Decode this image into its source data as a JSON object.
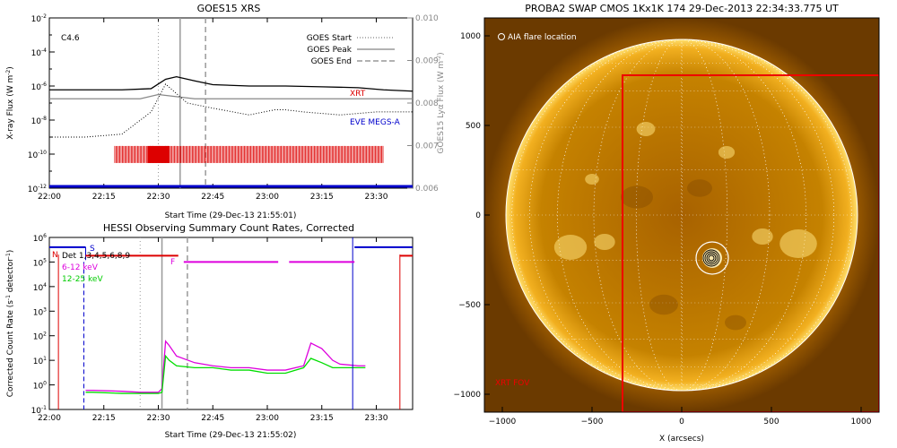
{
  "goes": {
    "title": "GOES15 XRS",
    "flare_class": "C4.6",
    "xlabel": "Start Time (29-Dec-13 21:55:01)",
    "ylabel_left": "X-ray Flux (W m",
    "ylabel_left_exp": "-2",
    "ylabel_left_close": ")",
    "ylabel_right": "GOES15 Lyα Flux (W m",
    "ylabel_right_exp": "-2",
    "ylabel_right_close": ")",
    "legend": [
      {
        "label": "GOES Start",
        "style": "dotted"
      },
      {
        "label": "GOES Peak",
        "style": "solid"
      },
      {
        "label": "GOES End",
        "style": "dashed"
      }
    ],
    "xrt_label": "XRT",
    "eve_label": "EVE MEGS-A",
    "colors": {
      "xrt": "#dd0000",
      "eve": "#0000cc",
      "vline": "#999999"
    }
  },
  "hessi": {
    "title": "HESSI Observing Summary Count Rates, Corrected",
    "xlabel": "Start Time (29-Dec-13 21:55:02)",
    "ylabel": "Corrected Count Rate (s",
    "ylabel_exp": "-1",
    "ylabel_mid": " detector",
    "ylabel_exp2": "-1",
    "ylabel_close": ")",
    "legend_det": "Det 1,3,4,5,6,8,9",
    "legend_612": "6-12 keV",
    "legend_1225": "12-25 keV",
    "flag_n": "N",
    "flag_s": "S",
    "flag_f": "F",
    "colors": {
      "det": "#000000",
      "c612": "#dd00dd",
      "c1225": "#00dd00",
      "flags": "#dd0000",
      "blue": "#0000cc"
    }
  },
  "swap": {
    "title": "PROBA2 SWAP CMOS 1Kx1K 174 29-Dec-2013 22:34:33.775 UT",
    "annotation": "AIA flare location",
    "box_label": "XRT FOV",
    "xlabel": "X (arcsecs)",
    "colors": {
      "box": "#ee0000",
      "sun": "#f0a800"
    }
  },
  "chart_data": [
    {
      "type": "line",
      "title": "GOES15 XRS",
      "xlabel": "Start Time (29-Dec-13 21:55:01)",
      "ylabel": "X-ray Flux (W m-2)",
      "ylabel_right": "GOES15 Lyα Flux (W m-2)",
      "x_ticks": [
        "22:00",
        "22:15",
        "22:30",
        "22:45",
        "23:00",
        "23:15",
        "23:30"
      ],
      "x_minutes": [
        0,
        15,
        30,
        45,
        60,
        75,
        90
      ],
      "xlim_minutes_after_2155": [
        0,
        100
      ],
      "ylim": [
        1e-12,
        0.01
      ],
      "y_scale": "log",
      "y_ticks": [
        "10^-12",
        "10^-10",
        "10^-8",
        "10^-6",
        "10^-4",
        "10^-2"
      ],
      "ylim_right": [
        0.006,
        0.01
      ],
      "y_ticks_right": [
        0.006,
        0.007,
        0.008,
        0.009,
        0.01
      ],
      "vlines": {
        "GOES Start": "22:25",
        "GOES Peak": "22:31",
        "GOES End": "22:38"
      },
      "series": [
        {
          "name": "",
          "x_minutes": [
            0,
            20,
            28,
            32,
            35,
            40,
            45,
            55,
            65,
            75,
            85,
            92,
            100
          ],
          "values": [
            6e-07,
            6e-07,
            7e-07,
            2.5e-06,
            3.5e-06,
            2e-06,
            1.2e-06,
            1e-06,
            1e-06,
            9e-07,
            8e-07,
            6e-07,
            5e-07
          ]
        },
        {
          "name": "",
          "x_minutes": [
            0,
            25,
            30,
            35,
            40,
            60,
            80,
            100
          ],
          "values": [
            0.0081,
            0.0081,
            0.0082,
            0.00815,
            0.0081,
            0.0081,
            0.0081,
            0.0081
          ]
        },
        {
          "name": "",
          "x_minutes": [
            0,
            10,
            20,
            28,
            32,
            38,
            45,
            55,
            62,
            65,
            70,
            80,
            90,
            100
          ],
          "values": [
            1e-09,
            1e-09,
            1.5e-09,
            3e-08,
            1.3e-06,
            1e-07,
            5e-08,
            2e-08,
            4e-08,
            4e-08,
            3e-08,
            2e-08,
            3e-08,
            3e-08
          ]
        }
      ],
      "xrt_coverage_minutes": [
        18,
        92
      ],
      "eve_coverage_minutes": [
        0,
        100
      ]
    },
    {
      "type": "line",
      "title": "HESSI Observing Summary Count Rates, Corrected",
      "xlabel": "Start Time (29-Dec-13 21:55:02)",
      "ylabel": "Corrected Count Rate (s-1 detector-1)",
      "x_ticks": [
        "22:00",
        "22:15",
        "22:30",
        "22:45",
        "23:00",
        "23:15",
        "23:30"
      ],
      "x_minutes": [
        0,
        15,
        30,
        45,
        60,
        75,
        90
      ],
      "xlim_minutes_after_2155": [
        0,
        100
      ],
      "ylim": [
        0.1,
        1000000.0
      ],
      "y_scale": "log",
      "y_ticks": [
        "10^-1",
        "10^0",
        "10^1",
        "10^2",
        "10^3",
        "10^4",
        "10^5",
        "10^6"
      ],
      "series": [
        {
          "name": "6-12 keV",
          "x_minutes": [
            10,
            12,
            20,
            25,
            30,
            31,
            32,
            33,
            35,
            40,
            45,
            50,
            55,
            60,
            65,
            70,
            72,
            75,
            78,
            80,
            85,
            87
          ],
          "values": [
            0.6,
            0.6,
            0.55,
            0.5,
            0.5,
            0.7,
            60,
            40,
            15,
            8,
            6,
            5,
            5,
            4,
            4,
            6,
            50,
            30,
            10,
            7,
            6,
            6
          ]
        },
        {
          "name": "12-25 keV",
          "x_minutes": [
            10,
            12,
            20,
            25,
            30,
            31,
            32,
            33,
            35,
            40,
            45,
            50,
            55,
            60,
            65,
            70,
            72,
            75,
            78,
            80,
            85,
            87
          ],
          "values": [
            0.5,
            0.5,
            0.45,
            0.45,
            0.45,
            0.5,
            15,
            10,
            6,
            5,
            5,
            4,
            4,
            3,
            3,
            5,
            12,
            8,
            5,
            5,
            5,
            5
          ]
        }
      ],
      "flags": [
        "N",
        "S",
        "F"
      ]
    },
    {
      "type": "heatmap",
      "title": "PROBA2 SWAP CMOS 1Kx1K 174 29-Dec-2013 22:34:33.775 UT",
      "xlabel": "X (arcsecs)",
      "x_ticks": [
        -1000,
        -500,
        0,
        500,
        1000
      ],
      "y_ticks": [
        -1000,
        -500,
        0,
        500,
        1000
      ],
      "xlim": [
        -1100,
        1100
      ],
      "ylim": [
        -1100,
        1100
      ],
      "solar_radius_arcsec": 980,
      "flare_location": [
        170,
        -240
      ],
      "xrt_fov_box": {
        "x0": -330,
        "x1": 1100,
        "y0": -1100,
        "y1": 780
      }
    }
  ]
}
